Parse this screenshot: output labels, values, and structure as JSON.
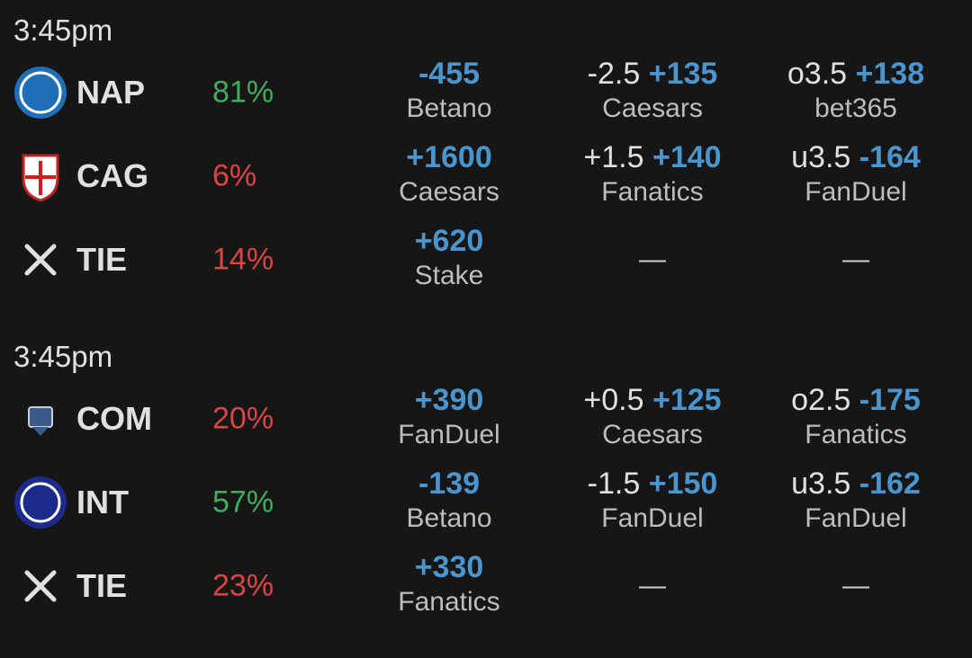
{
  "matches": [
    {
      "time": "3:45pm",
      "rows": [
        {
          "team": "NAP",
          "prob": "81%",
          "prob_color": "#3fae5a",
          "moneyline": {
            "odds": "-455",
            "book": "Betano"
          },
          "spread": {
            "line": "-2.5",
            "odds": "+135",
            "book": "Caesars"
          },
          "total": {
            "line": "o3.5",
            "odds": "+138",
            "book": "bet365"
          }
        },
        {
          "team": "CAG",
          "prob": "6%",
          "prob_color": "#d94545",
          "moneyline": {
            "odds": "+1600",
            "book": "Caesars"
          },
          "spread": {
            "line": "+1.5",
            "odds": "+140",
            "book": "Fanatics"
          },
          "total": {
            "line": "u3.5",
            "odds": "-164",
            "book": "FanDuel"
          }
        },
        {
          "team": "TIE",
          "prob": "14%",
          "prob_color": "#d94545",
          "moneyline": {
            "odds": "+620",
            "book": "Stake"
          },
          "spread": "—",
          "total": "—"
        }
      ]
    },
    {
      "time": "3:45pm",
      "rows": [
        {
          "team": "COM",
          "prob": "20%",
          "prob_color": "#d94545",
          "moneyline": {
            "odds": "+390",
            "book": "FanDuel"
          },
          "spread": {
            "line": "+0.5",
            "odds": "+125",
            "book": "Caesars"
          },
          "total": {
            "line": "o2.5",
            "odds": "-175",
            "book": "Fanatics"
          }
        },
        {
          "team": "INT",
          "prob": "57%",
          "prob_color": "#3fae5a",
          "moneyline": {
            "odds": "-139",
            "book": "Betano"
          },
          "spread": {
            "line": "-1.5",
            "odds": "+150",
            "book": "FanDuel"
          },
          "total": {
            "line": "u3.5",
            "odds": "-162",
            "book": "FanDuel"
          }
        },
        {
          "team": "TIE",
          "prob": "23%",
          "prob_color": "#d94545",
          "moneyline": {
            "odds": "+330",
            "book": "Fanatics"
          },
          "spread": "—",
          "total": "—"
        }
      ]
    }
  ]
}
